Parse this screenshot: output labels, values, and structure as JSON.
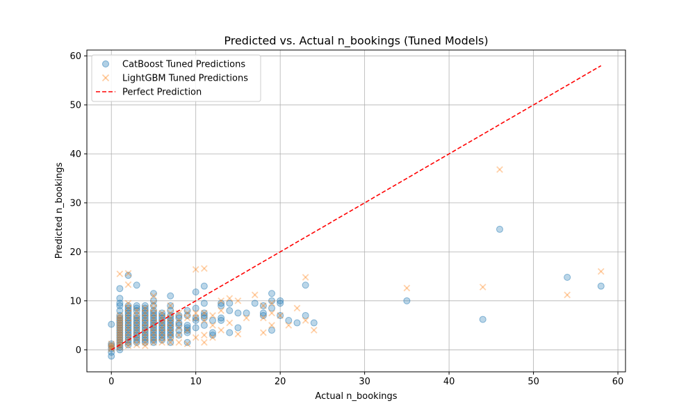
{
  "chart_data": {
    "type": "scatter",
    "title": "Predicted vs. Actual n_bookings (Tuned Models)",
    "xlabel": "Actual n_bookings",
    "ylabel": "Predicted n_bookings",
    "xlim": [
      -2.9,
      60.9
    ],
    "ylim": [
      -4.5,
      61.2
    ],
    "xticks": [
      0,
      10,
      20,
      30,
      40,
      50,
      60
    ],
    "yticks": [
      0,
      10,
      20,
      30,
      40,
      50,
      60
    ],
    "grid": true,
    "legend_position": "top-left",
    "series": [
      {
        "name": "CatBoost Tuned Predictions",
        "marker": "circle",
        "color": "#1f77b4",
        "points": [
          [
            0,
            -1.3
          ],
          [
            0,
            -0.5
          ],
          [
            0,
            0.2
          ],
          [
            0,
            0.8
          ],
          [
            0,
            1.2
          ],
          [
            0,
            5.2
          ],
          [
            1,
            0
          ],
          [
            1,
            0.5
          ],
          [
            1,
            1
          ],
          [
            1,
            1.5
          ],
          [
            1,
            2
          ],
          [
            1,
            2.5
          ],
          [
            1,
            3
          ],
          [
            1,
            3.5
          ],
          [
            1,
            4
          ],
          [
            1,
            4.5
          ],
          [
            1,
            5
          ],
          [
            1,
            5.5
          ],
          [
            1,
            6
          ],
          [
            1,
            6.5
          ],
          [
            1,
            7
          ],
          [
            1,
            8
          ],
          [
            1,
            9
          ],
          [
            1,
            9.5
          ],
          [
            1,
            10.5
          ],
          [
            1,
            12.5
          ],
          [
            2,
            1
          ],
          [
            2,
            1.5
          ],
          [
            2,
            2
          ],
          [
            2,
            2.5
          ],
          [
            2,
            3
          ],
          [
            2,
            3.5
          ],
          [
            2,
            4
          ],
          [
            2,
            4.5
          ],
          [
            2,
            5
          ],
          [
            2,
            5.5
          ],
          [
            2,
            6
          ],
          [
            2,
            6.5
          ],
          [
            2,
            7
          ],
          [
            2,
            7.5
          ],
          [
            2,
            8
          ],
          [
            2,
            8.5
          ],
          [
            2,
            9
          ],
          [
            2,
            15.2
          ],
          [
            3,
            1.5
          ],
          [
            3,
            2
          ],
          [
            3,
            2.5
          ],
          [
            3,
            3
          ],
          [
            3,
            3.5
          ],
          [
            3,
            4
          ],
          [
            3,
            4.5
          ],
          [
            3,
            5
          ],
          [
            3,
            5.5
          ],
          [
            3,
            6
          ],
          [
            3,
            6.5
          ],
          [
            3,
            7
          ],
          [
            3,
            8
          ],
          [
            3,
            8.5
          ],
          [
            3,
            9
          ],
          [
            3,
            13.2
          ],
          [
            4,
            1.5
          ],
          [
            4,
            2
          ],
          [
            4,
            2.5
          ],
          [
            4,
            3
          ],
          [
            4,
            3.5
          ],
          [
            4,
            4
          ],
          [
            4,
            4.5
          ],
          [
            4,
            5
          ],
          [
            4,
            5.5
          ],
          [
            4,
            6
          ],
          [
            4,
            6.5
          ],
          [
            4,
            7
          ],
          [
            4,
            7.5
          ],
          [
            4,
            8
          ],
          [
            4,
            8.5
          ],
          [
            4,
            9
          ],
          [
            5,
            1.5
          ],
          [
            5,
            2
          ],
          [
            5,
            2.5
          ],
          [
            5,
            3
          ],
          [
            5,
            3.5
          ],
          [
            5,
            4
          ],
          [
            5,
            4.5
          ],
          [
            5,
            5
          ],
          [
            5,
            5.5
          ],
          [
            5,
            6
          ],
          [
            5,
            6.5
          ],
          [
            5,
            7
          ],
          [
            5,
            7.5
          ],
          [
            5,
            8
          ],
          [
            5,
            9
          ],
          [
            5,
            10
          ],
          [
            5,
            11.5
          ],
          [
            6,
            2
          ],
          [
            6,
            2.5
          ],
          [
            6,
            3
          ],
          [
            6,
            3.5
          ],
          [
            6,
            4
          ],
          [
            6,
            4.5
          ],
          [
            6,
            5
          ],
          [
            6,
            5.5
          ],
          [
            6,
            6
          ],
          [
            6,
            6.5
          ],
          [
            6,
            7
          ],
          [
            6,
            7.5
          ],
          [
            7,
            1.5
          ],
          [
            7,
            2.5
          ],
          [
            7,
            3
          ],
          [
            7,
            3.5
          ],
          [
            7,
            4
          ],
          [
            7,
            4.5
          ],
          [
            7,
            5
          ],
          [
            7,
            5.5
          ],
          [
            7,
            6
          ],
          [
            7,
            6.5
          ],
          [
            7,
            7
          ],
          [
            7,
            8
          ],
          [
            7,
            9
          ],
          [
            7,
            11
          ],
          [
            8,
            3
          ],
          [
            8,
            4
          ],
          [
            8,
            5
          ],
          [
            8,
            5.5
          ],
          [
            8,
            6.5
          ],
          [
            8,
            7
          ],
          [
            9,
            1.5
          ],
          [
            9,
            3.5
          ],
          [
            9,
            4
          ],
          [
            9,
            4.5
          ],
          [
            9,
            5
          ],
          [
            9,
            7
          ],
          [
            9,
            8
          ],
          [
            10,
            4.5
          ],
          [
            10,
            6
          ],
          [
            10,
            6.5
          ],
          [
            10,
            8.5
          ],
          [
            10,
            11.8
          ],
          [
            11,
            5
          ],
          [
            11,
            6.5
          ],
          [
            11,
            7
          ],
          [
            11,
            7.5
          ],
          [
            11,
            9.5
          ],
          [
            11,
            13
          ],
          [
            12,
            3
          ],
          [
            12,
            3.5
          ],
          [
            12,
            6
          ],
          [
            13,
            6
          ],
          [
            13,
            6.5
          ],
          [
            13,
            9
          ],
          [
            13,
            9.5
          ],
          [
            14,
            3.5
          ],
          [
            14,
            8
          ],
          [
            14,
            9.5
          ],
          [
            15,
            4.5
          ],
          [
            15,
            7.5
          ],
          [
            16,
            7.5
          ],
          [
            17,
            9.5
          ],
          [
            18,
            7
          ],
          [
            18,
            7.5
          ],
          [
            18,
            9
          ],
          [
            19,
            4
          ],
          [
            19,
            8.5
          ],
          [
            19,
            10
          ],
          [
            19,
            11.5
          ],
          [
            20,
            7
          ],
          [
            20,
            9.5
          ],
          [
            20,
            10
          ],
          [
            21,
            6
          ],
          [
            22,
            5.5
          ],
          [
            23,
            7
          ],
          [
            23,
            13.2
          ],
          [
            24,
            5.5
          ],
          [
            35,
            10
          ],
          [
            44,
            6.2
          ],
          [
            46,
            24.6
          ],
          [
            54,
            14.8
          ],
          [
            58,
            13
          ]
        ]
      },
      {
        "name": "LightGBM Tuned Predictions",
        "marker": "x",
        "color": "#ff7f0e",
        "points": [
          [
            0,
            0.2
          ],
          [
            0,
            0.5
          ],
          [
            0,
            0.8
          ],
          [
            0,
            1.2
          ],
          [
            1,
            0.5
          ],
          [
            1,
            1
          ],
          [
            1,
            1.5
          ],
          [
            1,
            2
          ],
          [
            1,
            2.5
          ],
          [
            1,
            3
          ],
          [
            1,
            3.5
          ],
          [
            1,
            4
          ],
          [
            1,
            4.5
          ],
          [
            1,
            5
          ],
          [
            1,
            5.5
          ],
          [
            1,
            6
          ],
          [
            1,
            6.5
          ],
          [
            1,
            7
          ],
          [
            1,
            15.5
          ],
          [
            2,
            0.8
          ],
          [
            2,
            1.5
          ],
          [
            2,
            2.5
          ],
          [
            2,
            3.5
          ],
          [
            2,
            4.5
          ],
          [
            2,
            5.5
          ],
          [
            2,
            6.5
          ],
          [
            2,
            7.5
          ],
          [
            2,
            8.5
          ],
          [
            2,
            9.5
          ],
          [
            2,
            13.3
          ],
          [
            2,
            15.6
          ],
          [
            3,
            1
          ],
          [
            3,
            2
          ],
          [
            3,
            3
          ],
          [
            3,
            4
          ],
          [
            3,
            5
          ],
          [
            3,
            6
          ],
          [
            3,
            7
          ],
          [
            3,
            8
          ],
          [
            4,
            0.8
          ],
          [
            4,
            1.5
          ],
          [
            4,
            2.5
          ],
          [
            4,
            3.5
          ],
          [
            4,
            4.5
          ],
          [
            4,
            5.5
          ],
          [
            4,
            6.5
          ],
          [
            4,
            7.5
          ],
          [
            4,
            8.5
          ],
          [
            5,
            1.5
          ],
          [
            5,
            2.5
          ],
          [
            5,
            3.5
          ],
          [
            5,
            4.5
          ],
          [
            5,
            5.5
          ],
          [
            5,
            6.5
          ],
          [
            5,
            7.5
          ],
          [
            5,
            8.5
          ],
          [
            5,
            9.5
          ],
          [
            5,
            11
          ],
          [
            6,
            1.5
          ],
          [
            6,
            2.5
          ],
          [
            6,
            3.5
          ],
          [
            6,
            4.5
          ],
          [
            6,
            5.5
          ],
          [
            6,
            6.5
          ],
          [
            6,
            7.5
          ],
          [
            7,
            1.5
          ],
          [
            7,
            2.5
          ],
          [
            7,
            3.5
          ],
          [
            7,
            4.5
          ],
          [
            7,
            5.5
          ],
          [
            7,
            6.5
          ],
          [
            7,
            7.5
          ],
          [
            7,
            9
          ],
          [
            8,
            1.5
          ],
          [
            8,
            3
          ],
          [
            8,
            4.5
          ],
          [
            8,
            6
          ],
          [
            8,
            7.5
          ],
          [
            9,
            1.2
          ],
          [
            9,
            4
          ],
          [
            9,
            6.5
          ],
          [
            9,
            7.5
          ],
          [
            10,
            2.5
          ],
          [
            10,
            6.5
          ],
          [
            10,
            7.5
          ],
          [
            10,
            16.4
          ],
          [
            11,
            1.5
          ],
          [
            11,
            3
          ],
          [
            11,
            6
          ],
          [
            11,
            7.5
          ],
          [
            11,
            16.6
          ],
          [
            12,
            2.5
          ],
          [
            12,
            5
          ],
          [
            12,
            7
          ],
          [
            13,
            4
          ],
          [
            13,
            8
          ],
          [
            13,
            10
          ],
          [
            14,
            5.5
          ],
          [
            14,
            10.5
          ],
          [
            15,
            3.2
          ],
          [
            15,
            10
          ],
          [
            16,
            6.5
          ],
          [
            17,
            11.2
          ],
          [
            18,
            3.5
          ],
          [
            18,
            6.5
          ],
          [
            18,
            9
          ],
          [
            19,
            5
          ],
          [
            19,
            7.5
          ],
          [
            19,
            9.5
          ],
          [
            20,
            7
          ],
          [
            21,
            5
          ],
          [
            22,
            8.5
          ],
          [
            23,
            6
          ],
          [
            23,
            14.8
          ],
          [
            24,
            4
          ],
          [
            35,
            12.6
          ],
          [
            44,
            12.8
          ],
          [
            46,
            36.8
          ],
          [
            54,
            11.2
          ],
          [
            58,
            16
          ]
        ]
      },
      {
        "name": "Perfect Prediction",
        "marker": "dashed-line",
        "color": "#ff0000",
        "points": [
          [
            0,
            0
          ],
          [
            58,
            58
          ]
        ]
      }
    ]
  }
}
